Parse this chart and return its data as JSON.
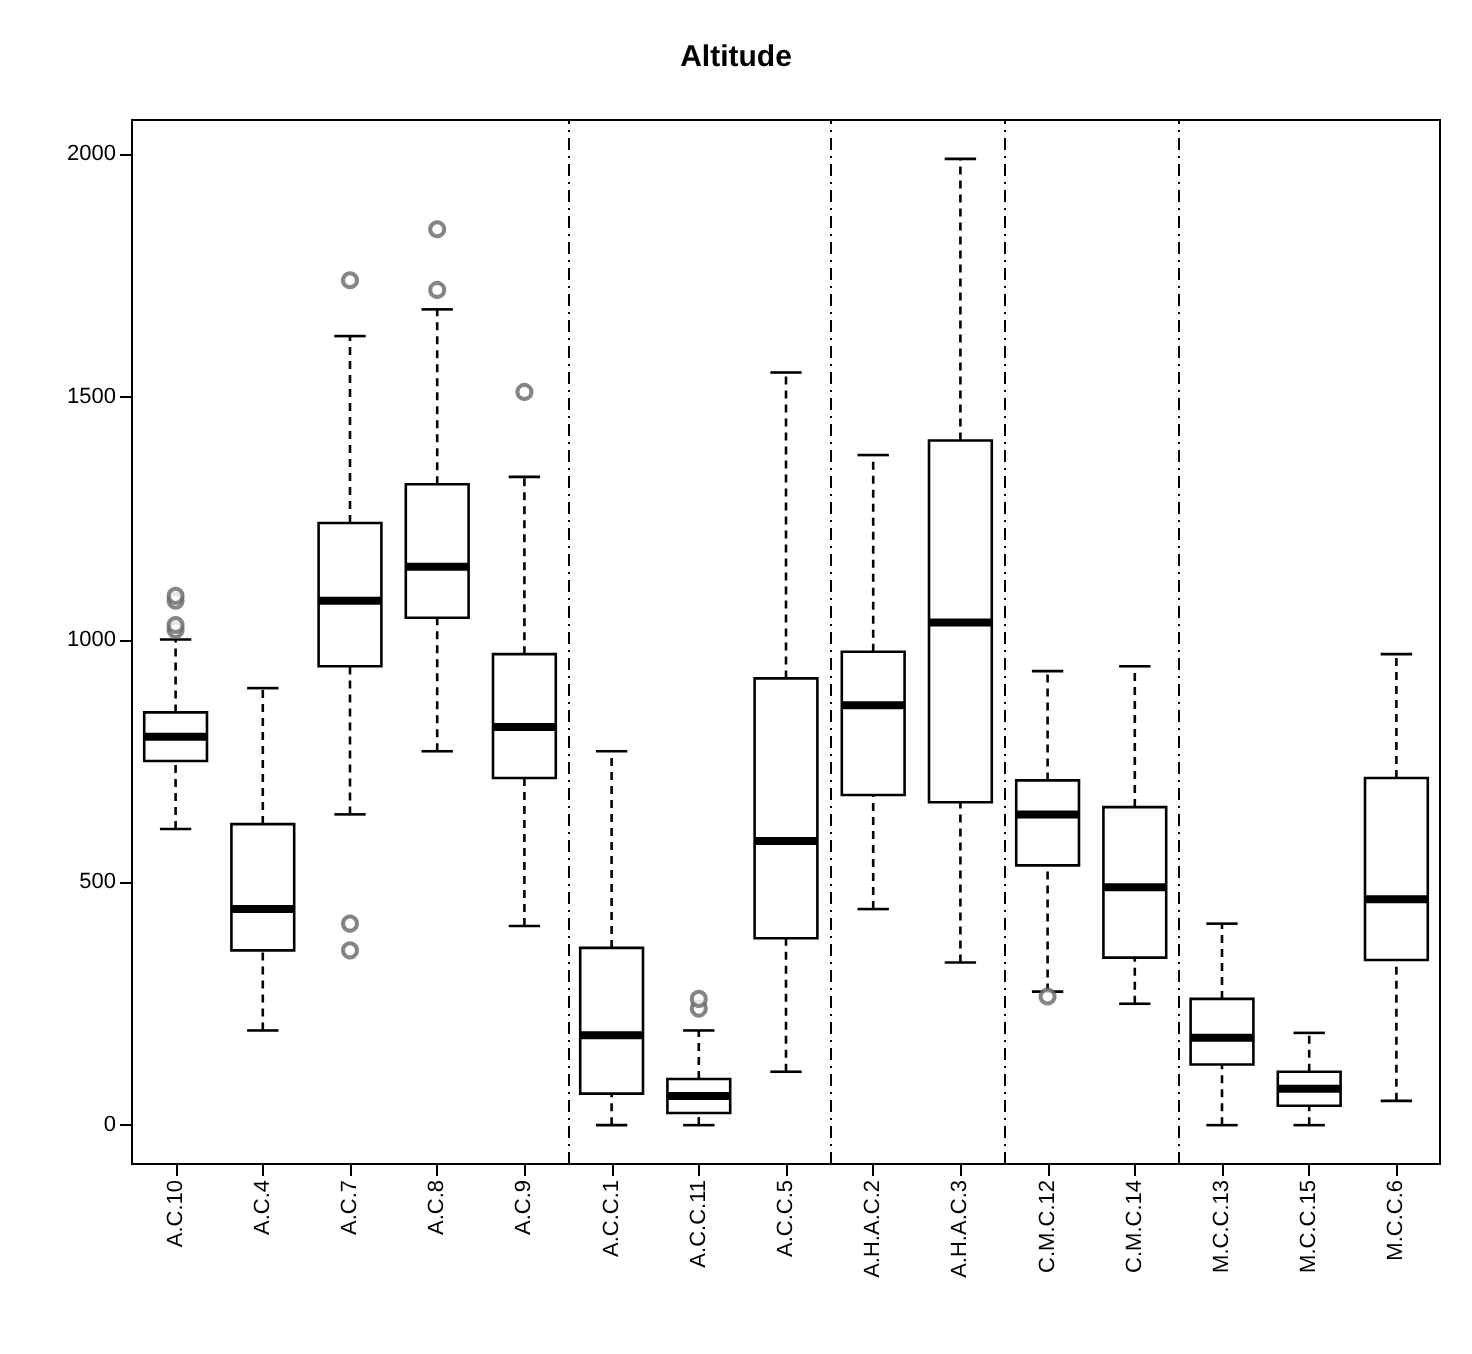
{
  "chart_data": {
    "type": "box",
    "title": "Altitude",
    "categories": [
      "A.C.10",
      "A.C.4",
      "A.C.7",
      "A.C.8",
      "A.C.9",
      "A.C.C.1",
      "A.C.C.11",
      "A.C.C.5",
      "A.H.A.C.2",
      "A.H.A.C.3",
      "C.M.C.12",
      "C.M.C.14",
      "M.C.C.13",
      "M.C.C.15",
      "M.C.C.6"
    ],
    "boxes": [
      {
        "low": 610,
        "q1": 750,
        "median": 800,
        "q3": 850,
        "high": 1000,
        "outliers": [
          1020,
          1030,
          1080,
          1090
        ]
      },
      {
        "low": 195,
        "q1": 360,
        "median": 445,
        "q3": 620,
        "high": 900
      },
      {
        "low": 640,
        "q1": 945,
        "median": 1080,
        "q3": 1240,
        "high": 1625,
        "outliers": [
          360,
          415,
          1740
        ]
      },
      {
        "low": 770,
        "q1": 1045,
        "median": 1150,
        "q3": 1320,
        "high": 1680,
        "outliers": [
          1720,
          1845
        ]
      },
      {
        "low": 410,
        "q1": 715,
        "median": 820,
        "q3": 970,
        "high": 1335,
        "outliers": [
          1510
        ]
      },
      {
        "low": 0,
        "q1": 65,
        "median": 185,
        "q3": 365,
        "high": 770
      },
      {
        "low": 0,
        "q1": 25,
        "median": 60,
        "q3": 95,
        "high": 195,
        "outliers": [
          240,
          260
        ]
      },
      {
        "low": 110,
        "q1": 385,
        "median": 585,
        "q3": 920,
        "high": 1550
      },
      {
        "low": 445,
        "q1": 680,
        "median": 865,
        "q3": 975,
        "high": 1380
      },
      {
        "low": 335,
        "q1": 665,
        "median": 1035,
        "q3": 1410,
        "high": 1990
      },
      {
        "low": 275,
        "q1": 535,
        "median": 640,
        "q3": 710,
        "high": 935,
        "outliers": [
          265
        ]
      },
      {
        "low": 250,
        "q1": 345,
        "median": 490,
        "q3": 655,
        "high": 945
      },
      {
        "low": 0,
        "q1": 125,
        "median": 180,
        "q3": 260,
        "high": 415
      },
      {
        "low": 0,
        "q1": 40,
        "median": 75,
        "q3": 110,
        "high": 190
      },
      {
        "low": 50,
        "q1": 340,
        "median": 465,
        "q3": 715,
        "high": 970
      }
    ],
    "ylim": [
      -80,
      2070
    ],
    "yticks": [
      0,
      500,
      1000,
      1500,
      2000
    ],
    "grid": false
  }
}
